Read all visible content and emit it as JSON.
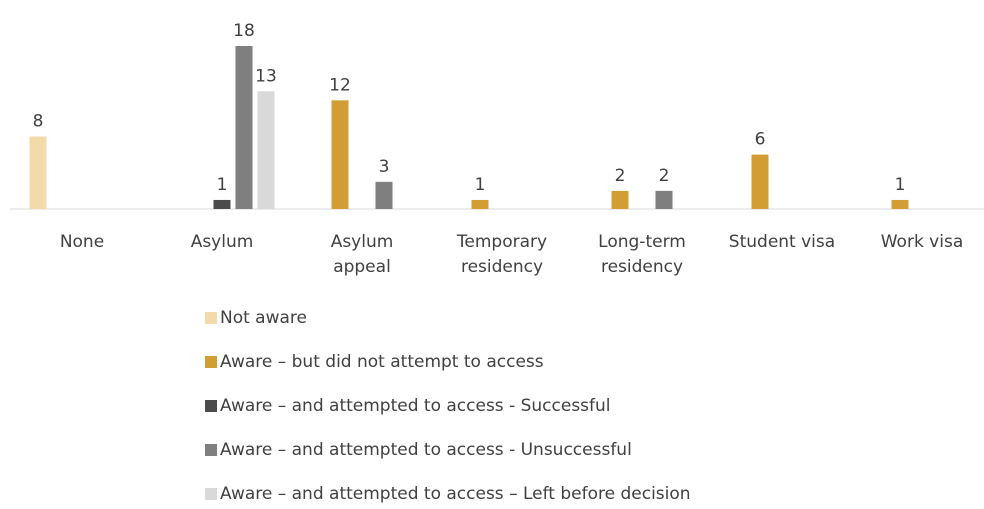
{
  "chart_data": {
    "type": "bar",
    "categories": [
      "None",
      "Asylum",
      "Asylum appeal",
      "Temporary residency",
      "Long-term residency",
      "Student visa",
      "Work visa"
    ],
    "series": [
      {
        "name": "Not aware",
        "color": "#f2dba8",
        "values": [
          8,
          null,
          null,
          null,
          null,
          null,
          null
        ]
      },
      {
        "name": "Aware – but did not attempt to access",
        "color": "#d29d33",
        "values": [
          null,
          null,
          12,
          1,
          2,
          6,
          1
        ]
      },
      {
        "name": "Aware – and attempted to access - Successful",
        "color": "#4b4b4b",
        "values": [
          null,
          1,
          null,
          null,
          null,
          null,
          null
        ]
      },
      {
        "name": "Aware – and attempted to access - Unsuccessful",
        "color": "#7f7f7f",
        "values": [
          null,
          18,
          3,
          null,
          2,
          null,
          null
        ]
      },
      {
        "name": "Aware – and attempted to access – Left before decision",
        "color": "#d9d9d9",
        "values": [
          null,
          13,
          null,
          null,
          null,
          null,
          null
        ]
      }
    ]
  }
}
